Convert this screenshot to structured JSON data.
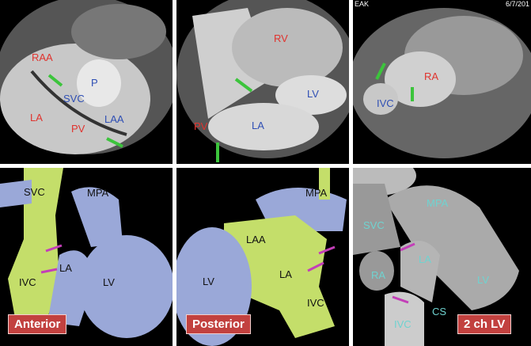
{
  "panels": [
    {
      "labels": {
        "raa": "RAA",
        "p": "P",
        "svc": "SVC",
        "la": "LA",
        "pv": "PV",
        "laa": "LAA"
      }
    },
    {
      "labels": {
        "rv": "RV",
        "lv": "LV",
        "la": "LA",
        "pv": "PV"
      }
    },
    {
      "meta_left": "EAK",
      "meta_right": "6/7/201",
      "labels": {
        "ra": "RA",
        "ivc": "IVC"
      }
    },
    {
      "tag": "Anterior",
      "labels": {
        "svc": "SVC",
        "mpa": "MPA",
        "la": "LA",
        "ivc": "IVC",
        "lv": "LV"
      }
    },
    {
      "tag": "Posterior",
      "labels": {
        "mpa": "MPA",
        "laa": "LAA",
        "la": "LA",
        "lv": "LV",
        "ivc": "IVC"
      }
    },
    {
      "tag": "2 ch LV",
      "labels": {
        "mpa": "MPA",
        "svc": "SVC",
        "la": "LA",
        "ra": "RA",
        "lv": "LV",
        "cs": "CS",
        "ivc": "IVC"
      }
    }
  ],
  "colors": {
    "red_label": "#e0332e",
    "blue_label": "#2f4fb4",
    "cyan_label": "#6fd3d0",
    "tag_bg": "#c2413f",
    "green_arrow": "#3cc43c",
    "magenta_arrow": "#c33fb8",
    "model_blue": "#9aa8d8",
    "model_green": "#c4de6a"
  }
}
